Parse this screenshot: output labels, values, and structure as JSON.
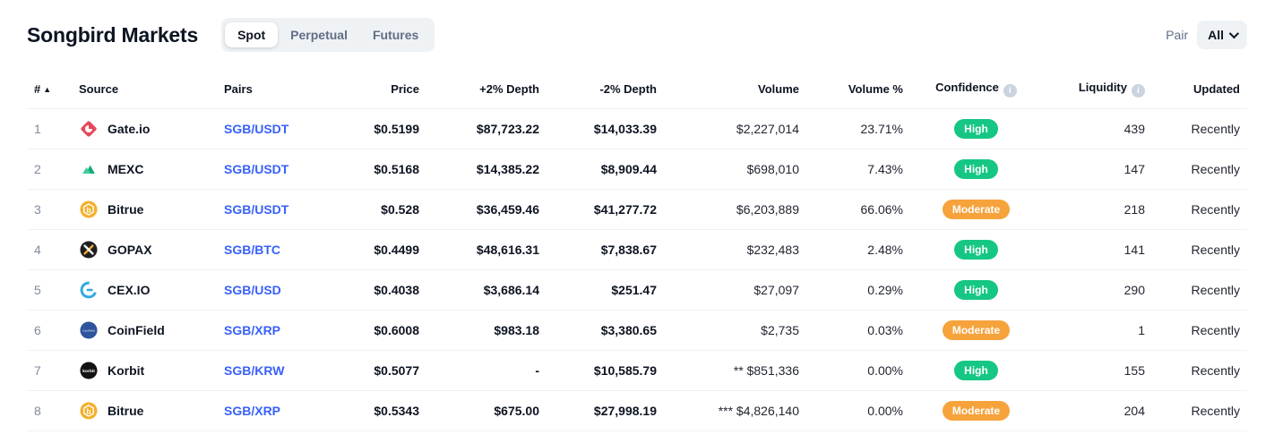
{
  "page": {
    "title": "Songbird Markets"
  },
  "tabs": [
    {
      "label": "Spot",
      "active": true
    },
    {
      "label": "Perpetual",
      "active": false
    },
    {
      "label": "Futures",
      "active": false
    }
  ],
  "pair_filter": {
    "label": "Pair",
    "value": "All"
  },
  "colors": {
    "confidence_high": "#16c784",
    "confidence_moderate": "#f6a33c",
    "pair_link": "#3861fb"
  },
  "table": {
    "columns": [
      "#",
      "Source",
      "Pairs",
      "Price",
      "+2% Depth",
      "-2% Depth",
      "Volume",
      "Volume %",
      "Confidence",
      "Liquidity",
      "Updated"
    ],
    "rows": [
      {
        "rank": "1",
        "source": "Gate.io",
        "logo": "gateio",
        "pair": "SGB/USDT",
        "price": "$0.5199",
        "depth_plus": "$87,723.22",
        "depth_minus": "$14,033.39",
        "volume": "$2,227,014",
        "volume_pct": "23.71%",
        "confidence": "High",
        "liquidity": "439",
        "updated": "Recently"
      },
      {
        "rank": "2",
        "source": "MEXC",
        "logo": "mexc",
        "pair": "SGB/USDT",
        "price": "$0.5168",
        "depth_plus": "$14,385.22",
        "depth_minus": "$8,909.44",
        "volume": "$698,010",
        "volume_pct": "7.43%",
        "confidence": "High",
        "liquidity": "147",
        "updated": "Recently"
      },
      {
        "rank": "3",
        "source": "Bitrue",
        "logo": "bitrue",
        "pair": "SGB/USDT",
        "price": "$0.528",
        "depth_plus": "$36,459.46",
        "depth_minus": "$41,277.72",
        "volume": "$6,203,889",
        "volume_pct": "66.06%",
        "confidence": "Moderate",
        "liquidity": "218",
        "updated": "Recently"
      },
      {
        "rank": "4",
        "source": "GOPAX",
        "logo": "gopax",
        "pair": "SGB/BTC",
        "price": "$0.4499",
        "depth_plus": "$48,616.31",
        "depth_minus": "$7,838.67",
        "volume": "$232,483",
        "volume_pct": "2.48%",
        "confidence": "High",
        "liquidity": "141",
        "updated": "Recently"
      },
      {
        "rank": "5",
        "source": "CEX.IO",
        "logo": "cexio",
        "pair": "SGB/USD",
        "price": "$0.4038",
        "depth_plus": "$3,686.14",
        "depth_minus": "$251.47",
        "volume": "$27,097",
        "volume_pct": "0.29%",
        "confidence": "High",
        "liquidity": "290",
        "updated": "Recently"
      },
      {
        "rank": "6",
        "source": "CoinField",
        "logo": "coinfield",
        "pair": "SGB/XRP",
        "price": "$0.6008",
        "depth_plus": "$983.18",
        "depth_minus": "$3,380.65",
        "volume": "$2,735",
        "volume_pct": "0.03%",
        "confidence": "Moderate",
        "liquidity": "1",
        "updated": "Recently"
      },
      {
        "rank": "7",
        "source": "Korbit",
        "logo": "korbit",
        "pair": "SGB/KRW",
        "price": "$0.5077",
        "depth_plus": "-",
        "depth_minus": "$10,585.79",
        "volume": "** $851,336",
        "volume_pct": "0.00%",
        "confidence": "High",
        "liquidity": "155",
        "updated": "Recently"
      },
      {
        "rank": "8",
        "source": "Bitrue",
        "logo": "bitrue",
        "pair": "SGB/XRP",
        "price": "$0.5343",
        "depth_plus": "$675.00",
        "depth_minus": "$27,998.19",
        "volume": "*** $4,826,140",
        "volume_pct": "0.00%",
        "confidence": "Moderate",
        "liquidity": "204",
        "updated": "Recently"
      }
    ]
  }
}
